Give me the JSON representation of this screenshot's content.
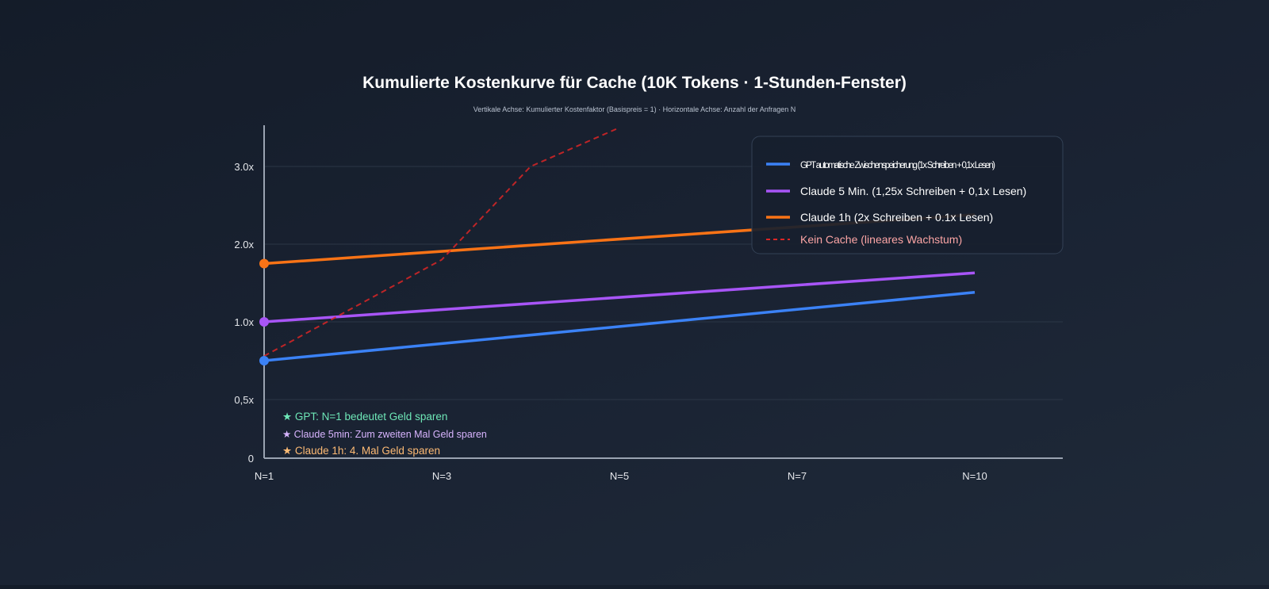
{
  "chart_data": {
    "type": "line",
    "title": "Kumulierte Kostenkurve für Cache (10K Tokens · 1-Stunden-Fenster)",
    "subtitle": "Vertikale Achse: Kumulierter Kostenfaktor (Basispreis = 1) · Horizontale Achse: Anzahl der Anfragen N",
    "x_ticks": [
      {
        "n": 1,
        "label": "N=1"
      },
      {
        "n": 3,
        "label": "N=3"
      },
      {
        "n": 5,
        "label": "N=5"
      },
      {
        "n": 7,
        "label": "N=7"
      },
      {
        "n": 10,
        "label": "N=10"
      }
    ],
    "y_ticks": [
      {
        "value": 0,
        "label": "0"
      },
      {
        "value": 0.5,
        "label": "0,5x"
      },
      {
        "value": 1.0,
        "label": "1.0x"
      },
      {
        "value": 2.0,
        "label": "2.0x"
      },
      {
        "value": 3.0,
        "label": "3.0x"
      }
    ],
    "xlim": [
      1,
      10
    ],
    "ylim": [
      0,
      3.5
    ],
    "grid": true,
    "legend_position": "top-right",
    "series": [
      {
        "name": "GPT automatische Zwischenspeicherung (1x Schreiben + 0,1x Lesen)",
        "color": "#3b82f6",
        "dash": false,
        "x": [
          1,
          10
        ],
        "y": [
          0.75,
          1.38
        ]
      },
      {
        "name": "Claude 5 Min. (1,25x Schreiben + 0,1x Lesen)",
        "color": "#a855f7",
        "dash": false,
        "x": [
          1,
          10
        ],
        "y": [
          1.0,
          1.63
        ]
      },
      {
        "name": "Claude 1h (2x Schreiben + 0.1x Lesen)",
        "color": "#f97316",
        "dash": false,
        "x": [
          1,
          10
        ],
        "y": [
          1.75,
          2.38
        ]
      },
      {
        "name": "Kein Cache (lineares Wachstum)",
        "color": "#dc2626",
        "dash": true,
        "x": [
          1,
          3,
          4,
          5
        ],
        "y": [
          0.78,
          1.8,
          3.0,
          3.5
        ]
      }
    ],
    "annotations": [
      {
        "text": "★ GPT: N=1 bedeutet Geld sparen",
        "color": "#6ee7b7"
      },
      {
        "text": "★ Claude 5min: Zum zweiten Mal Geld sparen",
        "color": "#d8b4fe"
      },
      {
        "text": "★ Claude 1h: 4. Mal Geld sparen",
        "color": "#fdba74"
      }
    ]
  }
}
